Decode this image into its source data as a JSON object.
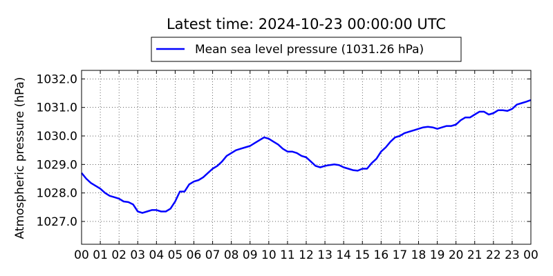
{
  "chart_data": {
    "type": "line",
    "title": "Latest time: 2024-10-23 00:00:00 UTC",
    "xlabel": "",
    "ylabel": "Atmospheric pressure (hPa)",
    "x_tick_labels": [
      "00",
      "01",
      "02",
      "03",
      "04",
      "05",
      "06",
      "07",
      "08",
      "09",
      "10",
      "11",
      "12",
      "13",
      "14",
      "15",
      "16",
      "17",
      "18",
      "19",
      "20",
      "21",
      "22",
      "23",
      "00"
    ],
    "xlim": [
      0,
      24
    ],
    "ylim": [
      1026.2,
      1032.3
    ],
    "y_ticks": [
      "1027.0",
      "1028.0",
      "1029.0",
      "1030.0",
      "1031.0",
      "1032.0"
    ],
    "grid": true,
    "legend_position": "top-center, above plot",
    "series": [
      {
        "name": "Mean sea level pressure (1031.26 hPa)",
        "color": "#0000ff",
        "x": [
          0.0,
          0.25,
          0.5,
          0.75,
          1.0,
          1.25,
          1.5,
          1.75,
          2.0,
          2.25,
          2.5,
          2.75,
          3.0,
          3.25,
          3.5,
          3.75,
          4.0,
          4.25,
          4.5,
          4.75,
          5.0,
          5.25,
          5.5,
          5.75,
          6.0,
          6.25,
          6.5,
          6.75,
          7.0,
          7.25,
          7.5,
          7.75,
          8.0,
          8.25,
          8.5,
          8.75,
          9.0,
          9.25,
          9.5,
          9.75,
          10.0,
          10.25,
          10.5,
          10.75,
          11.0,
          11.25,
          11.5,
          11.75,
          12.0,
          12.25,
          12.5,
          12.75,
          13.0,
          13.25,
          13.5,
          13.75,
          14.0,
          14.25,
          14.5,
          14.75,
          15.0,
          15.25,
          15.5,
          15.75,
          16.0,
          16.25,
          16.5,
          16.75,
          17.0,
          17.25,
          17.5,
          17.75,
          18.0,
          18.25,
          18.5,
          18.75,
          19.0,
          19.25,
          19.5,
          19.75,
          20.0,
          20.25,
          20.5,
          20.75,
          21.0,
          21.25,
          21.5,
          21.75,
          22.0,
          22.25,
          22.5,
          22.75,
          23.0,
          23.25,
          23.5,
          23.75,
          24.0
        ],
        "values": [
          1028.7,
          1028.5,
          1028.35,
          1028.25,
          1028.15,
          1028.0,
          1027.9,
          1027.85,
          1027.8,
          1027.7,
          1027.68,
          1027.6,
          1027.35,
          1027.3,
          1027.35,
          1027.4,
          1027.4,
          1027.35,
          1027.35,
          1027.45,
          1027.7,
          1028.05,
          1028.05,
          1028.3,
          1028.4,
          1028.45,
          1028.55,
          1028.7,
          1028.85,
          1028.95,
          1029.1,
          1029.3,
          1029.4,
          1029.5,
          1029.55,
          1029.6,
          1029.65,
          1029.75,
          1029.85,
          1029.95,
          1029.9,
          1029.8,
          1029.7,
          1029.55,
          1029.45,
          1029.45,
          1029.4,
          1029.3,
          1029.25,
          1029.1,
          1028.95,
          1028.9,
          1028.95,
          1028.98,
          1029.0,
          1028.98,
          1028.9,
          1028.85,
          1028.8,
          1028.78,
          1028.85,
          1028.85,
          1029.05,
          1029.2,
          1029.45,
          1029.6,
          1029.8,
          1029.95,
          1030.0,
          1030.1,
          1030.15,
          1030.2,
          1030.25,
          1030.3,
          1030.32,
          1030.3,
          1030.25,
          1030.3,
          1030.35,
          1030.35,
          1030.4,
          1030.55,
          1030.65,
          1030.65,
          1030.75,
          1030.85,
          1030.85,
          1030.75,
          1030.8,
          1030.9,
          1030.9,
          1030.88,
          1030.95,
          1031.1,
          1031.15,
          1031.2,
          1031.26
        ]
      }
    ]
  }
}
